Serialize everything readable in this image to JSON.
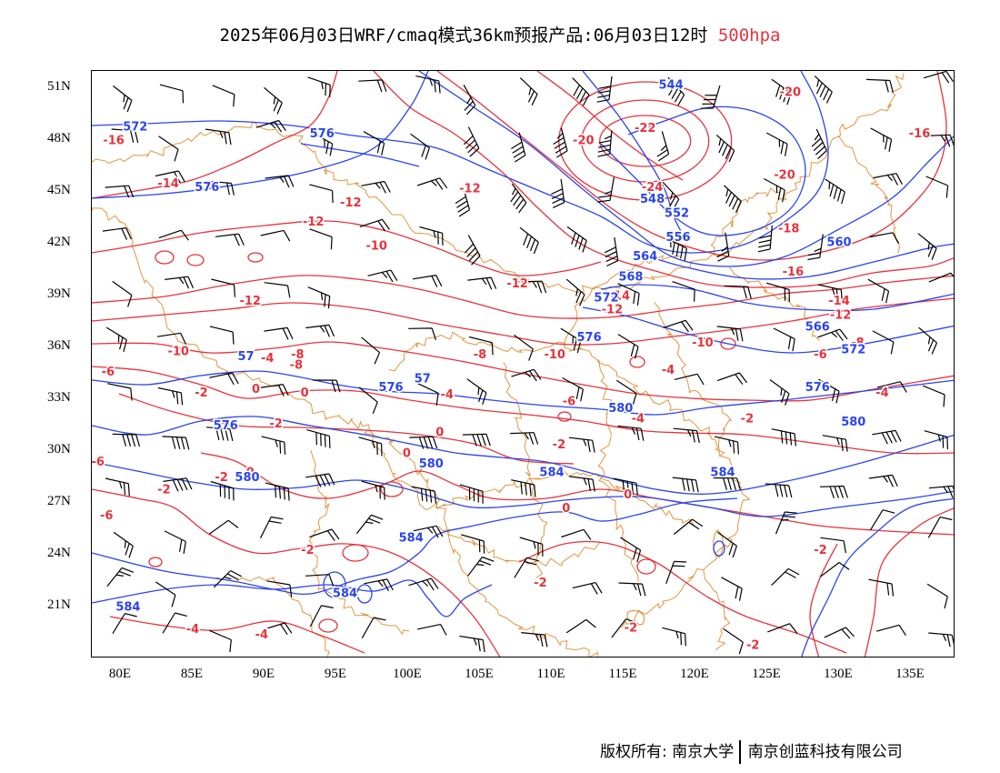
{
  "title": {
    "main": "2025年06月03日WRF/cmaq模式36km预报产品:06月03日12时",
    "level": "500hpa"
  },
  "colors": {
    "height_contours": "#2a44f0",
    "temperature_contours": "#e8323c",
    "boundaries": "#e08a2a",
    "wind_barbs": "#000000"
  },
  "axes": {
    "lat_ticks": [
      "51N",
      "48N",
      "45N",
      "42N",
      "39N",
      "36N",
      "33N",
      "30N",
      "27N",
      "24N",
      "21N"
    ],
    "lon_ticks": [
      "80E",
      "85E",
      "90E",
      "95E",
      "100E",
      "105E",
      "110E",
      "115E",
      "120E",
      "125E",
      "130E",
      "135E"
    ],
    "lon_range": [
      78,
      138
    ],
    "lat_range": [
      18,
      52
    ]
  },
  "height_labels": [
    {
      "text": "544",
      "lon": 118.3,
      "lat": 51.2
    },
    {
      "text": "572",
      "lon": 81.0,
      "lat": 48.8
    },
    {
      "text": "576",
      "lon": 94.0,
      "lat": 48.4
    },
    {
      "text": "576",
      "lon": 86.0,
      "lat": 45.3
    },
    {
      "text": "548",
      "lon": 117.0,
      "lat": 44.6
    },
    {
      "text": "552",
      "lon": 118.7,
      "lat": 43.8
    },
    {
      "text": "556",
      "lon": 118.8,
      "lat": 42.4
    },
    {
      "text": "560",
      "lon": 130.0,
      "lat": 42.1
    },
    {
      "text": "564",
      "lon": 116.5,
      "lat": 41.3
    },
    {
      "text": "568",
      "lon": 115.5,
      "lat": 40.1
    },
    {
      "text": "572",
      "lon": 113.8,
      "lat": 38.9
    },
    {
      "text": "576",
      "lon": 112.6,
      "lat": 36.6
    },
    {
      "text": "566",
      "lon": 128.5,
      "lat": 37.2
    },
    {
      "text": "572",
      "lon": 131.0,
      "lat": 35.9
    },
    {
      "text": "57",
      "lon": 88.7,
      "lat": 35.5
    },
    {
      "text": "57",
      "lon": 101.0,
      "lat": 34.2
    },
    {
      "text": "576",
      "lon": 98.8,
      "lat": 33.7
    },
    {
      "text": "576",
      "lon": 128.5,
      "lat": 33.7
    },
    {
      "text": "580",
      "lon": 114.8,
      "lat": 32.5
    },
    {
      "text": "580",
      "lon": 131.0,
      "lat": 31.7
    },
    {
      "text": "576",
      "lon": 87.3,
      "lat": 31.5
    },
    {
      "text": "580",
      "lon": 101.6,
      "lat": 29.3
    },
    {
      "text": "580",
      "lon": 88.8,
      "lat": 28.5
    },
    {
      "text": "584",
      "lon": 110.0,
      "lat": 28.8
    },
    {
      "text": "584",
      "lon": 121.9,
      "lat": 28.8
    },
    {
      "text": "584",
      "lon": 100.2,
      "lat": 25.0
    },
    {
      "text": "584",
      "lon": 95.6,
      "lat": 21.8
    },
    {
      "text": "584",
      "lon": 80.5,
      "lat": 21.0
    }
  ],
  "temperature_labels": [
    {
      "text": "-20",
      "lon": 126.6,
      "lat": 50.8
    },
    {
      "text": "-16",
      "lon": 135.6,
      "lat": 48.4
    },
    {
      "text": "-16",
      "lon": 79.5,
      "lat": 48.0
    },
    {
      "text": "-20",
      "lon": 112.2,
      "lat": 48.0
    },
    {
      "text": "-22",
      "lon": 116.5,
      "lat": 48.7
    },
    {
      "text": "-20",
      "lon": 126.2,
      "lat": 46.0
    },
    {
      "text": "-24",
      "lon": 117.0,
      "lat": 45.3
    },
    {
      "text": "-14",
      "lon": 83.3,
      "lat": 45.5
    },
    {
      "text": "-12",
      "lon": 104.3,
      "lat": 45.2
    },
    {
      "text": "-12",
      "lon": 96.0,
      "lat": 44.4
    },
    {
      "text": "-12",
      "lon": 93.4,
      "lat": 43.3
    },
    {
      "text": "-18",
      "lon": 126.5,
      "lat": 42.9
    },
    {
      "text": "-10",
      "lon": 97.8,
      "lat": 41.9
    },
    {
      "text": "-16",
      "lon": 126.8,
      "lat": 40.4
    },
    {
      "text": "-12",
      "lon": 107.6,
      "lat": 39.7
    },
    {
      "text": "-14",
      "lon": 114.7,
      "lat": 39.0
    },
    {
      "text": "-12",
      "lon": 114.2,
      "lat": 38.2
    },
    {
      "text": "-14",
      "lon": 130.0,
      "lat": 38.7
    },
    {
      "text": "-12",
      "lon": 89.0,
      "lat": 38.7
    },
    {
      "text": "-12",
      "lon": 130.1,
      "lat": 37.9
    },
    {
      "text": "-8",
      "lon": 131.3,
      "lat": 36.3
    },
    {
      "text": "-10",
      "lon": 120.5,
      "lat": 36.3
    },
    {
      "text": "-10",
      "lon": 84.0,
      "lat": 35.8
    },
    {
      "text": "-10",
      "lon": 110.2,
      "lat": 35.6
    },
    {
      "text": "-8",
      "lon": 92.3,
      "lat": 35.6
    },
    {
      "text": "-8",
      "lon": 105.0,
      "lat": 35.6
    },
    {
      "text": "-6",
      "lon": 128.7,
      "lat": 35.6
    },
    {
      "text": "-4",
      "lon": 90.2,
      "lat": 35.4
    },
    {
      "text": "-8",
      "lon": 92.2,
      "lat": 35.0
    },
    {
      "text": "-6",
      "lon": 79.1,
      "lat": 34.6
    },
    {
      "text": "-4",
      "lon": 118.1,
      "lat": 34.7
    },
    {
      "text": "-4",
      "lon": 133.0,
      "lat": 33.4
    },
    {
      "text": "-2",
      "lon": 85.6,
      "lat": 33.4
    },
    {
      "text": "0",
      "lon": 89.4,
      "lat": 33.6
    },
    {
      "text": "0",
      "lon": 92.8,
      "lat": 33.4
    },
    {
      "text": "-4",
      "lon": 102.7,
      "lat": 33.3
    },
    {
      "text": "-6",
      "lon": 111.2,
      "lat": 32.9
    },
    {
      "text": "-4",
      "lon": 116.0,
      "lat": 31.9
    },
    {
      "text": "-2",
      "lon": 123.6,
      "lat": 31.9
    },
    {
      "text": "-2",
      "lon": 90.8,
      "lat": 31.6
    },
    {
      "text": "0",
      "lon": 102.2,
      "lat": 31.1
    },
    {
      "text": "-2",
      "lon": 110.5,
      "lat": 30.4
    },
    {
      "text": "0",
      "lon": 99.9,
      "lat": 29.9
    },
    {
      "text": "-6",
      "lon": 78.4,
      "lat": 29.4
    },
    {
      "text": "0",
      "lon": 89.0,
      "lat": 28.8
    },
    {
      "text": "-2",
      "lon": 87.0,
      "lat": 28.5
    },
    {
      "text": "-2",
      "lon": 83.0,
      "lat": 27.8
    },
    {
      "text": "0",
      "lon": 115.3,
      "lat": 27.5
    },
    {
      "text": "0",
      "lon": 111.0,
      "lat": 26.7
    },
    {
      "text": "-6",
      "lon": 79.0,
      "lat": 26.3
    },
    {
      "text": "-2",
      "lon": 93.0,
      "lat": 24.3
    },
    {
      "text": "-2",
      "lon": 128.7,
      "lat": 24.3
    },
    {
      "text": "-2",
      "lon": 109.2,
      "lat": 22.4
    },
    {
      "text": "-2",
      "lon": 115.5,
      "lat": 19.8
    },
    {
      "text": "-4",
      "lon": 85.0,
      "lat": 19.7
    },
    {
      "text": "-4",
      "lon": 89.8,
      "lat": 19.4
    },
    {
      "text": "-2",
      "lon": 124.0,
      "lat": 18.8
    }
  ],
  "footer": {
    "copyright": "版权所有: 南京大学",
    "company": "南京创蓝科技有限公司"
  }
}
